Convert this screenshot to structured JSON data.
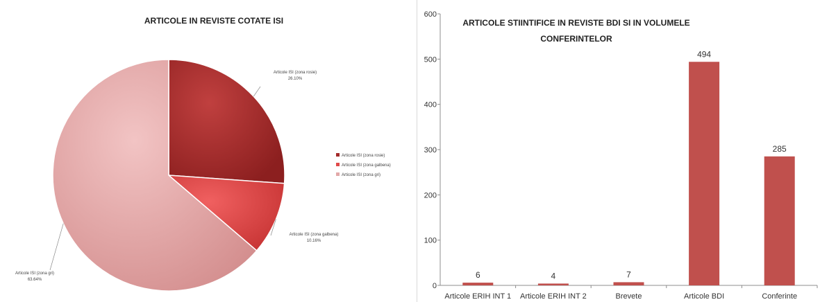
{
  "chart_data": [
    {
      "type": "pie",
      "title": "ARTICOLE IN REVISTE COTATE ISI",
      "slices": [
        {
          "label": "Articole ISI (zona rosie)",
          "value": 26.1,
          "value_label": "26.10%",
          "color": "#a32a2a"
        },
        {
          "label": "Articole ISI (zona galbena)",
          "value": 10.16,
          "value_label": "10.16%",
          "color": "#e04a4a"
        },
        {
          "label": "Articole ISI (zona gri)",
          "value": 63.64,
          "value_label": "63.64%",
          "color": "#e2a8a8"
        }
      ],
      "legend_position": "right"
    },
    {
      "type": "bar",
      "title": "ARTICOLE STIINTIFICE IN REVISTE BDI SI IN VOLUMELE CONFERINTELOR",
      "title_lines": [
        "ARTICOLE STIINTIFICE IN REVISTE BDI SI IN VOLUMELE",
        "CONFERINTELOR"
      ],
      "categories": [
        "Articole ERIH INT 1",
        "Articole ERIH INT 2",
        "Brevete",
        "Articole BDI",
        "Conferinte"
      ],
      "values": [
        6,
        4,
        7,
        494,
        285
      ],
      "ylim": [
        0,
        600
      ],
      "yticks": [
        0,
        100,
        200,
        300,
        400,
        500,
        600
      ],
      "bar_color": "#c0504d",
      "grid": false
    }
  ]
}
